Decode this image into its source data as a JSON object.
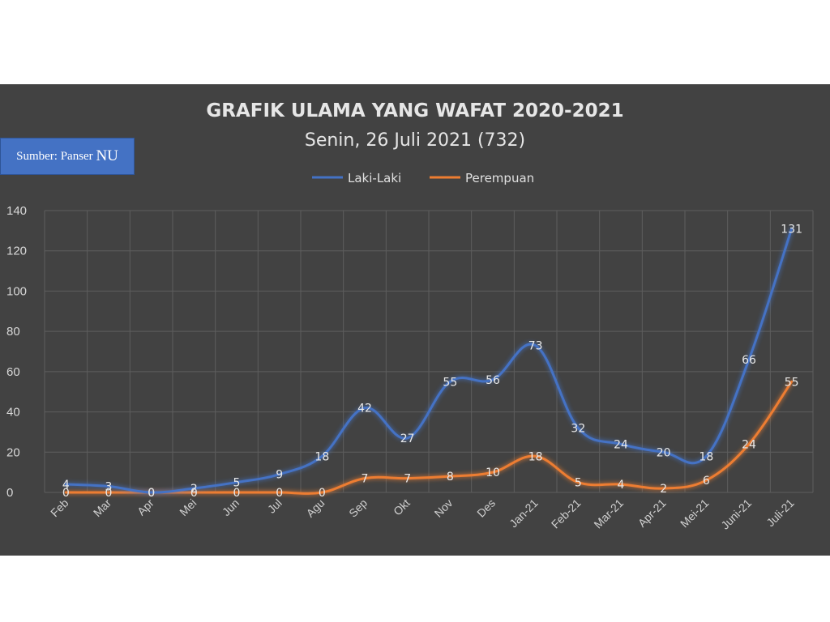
{
  "chart_data": {
    "type": "line",
    "title": "GRAFIK ULAMA YANG WAFAT 2020-2021",
    "subtitle": "Senin, 26 Juli 2021 (732)",
    "source": {
      "label": "Sumber: Panser",
      "emphasis": "NU"
    },
    "categories": [
      "Feb",
      "Mar",
      "Apr",
      "Mei",
      "Jun",
      "Jul",
      "Agu",
      "Sep",
      "Okt",
      "Nov",
      "Des",
      "Jan-21",
      "Feb-21",
      "Mar-21",
      "Apr-21",
      "Mei-21",
      "Juni-21",
      "Juli-21"
    ],
    "series": [
      {
        "name": "Laki-Laki",
        "color": "#4472c4",
        "values": [
          4,
          3,
          0,
          2,
          5,
          9,
          18,
          42,
          27,
          55,
          56,
          73,
          32,
          24,
          20,
          18,
          66,
          131
        ]
      },
      {
        "name": "Perempuan",
        "color": "#ed7d31",
        "values": [
          0,
          0,
          0,
          0,
          0,
          0,
          0,
          7,
          7,
          8,
          10,
          18,
          5,
          4,
          2,
          6,
          24,
          55
        ]
      }
    ],
    "ylim": [
      0,
      140
    ],
    "yticks": [
      0,
      20,
      40,
      60,
      80,
      100,
      120,
      140
    ],
    "grid": true,
    "legend_position": "top-center",
    "background_color": "#424242"
  }
}
